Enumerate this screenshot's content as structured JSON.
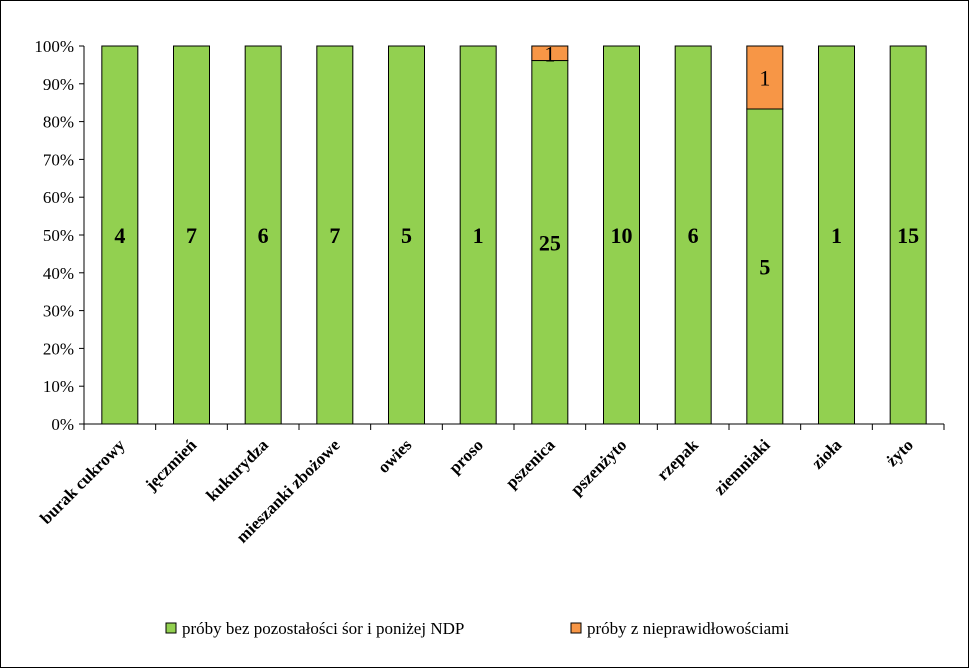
{
  "chart_data": {
    "type": "bar",
    "stacked": true,
    "normalized": true,
    "categories": [
      "burak cukrowy",
      "jęczmień",
      "kukurydza",
      "mieszanki zbożowe",
      "owies",
      "proso",
      "pszenica",
      "pszenżyto",
      "rzepak",
      "ziemniaki",
      "zioła",
      "żyto"
    ],
    "series": [
      {
        "name": "próby bez pozostałości śor i poniżej NDP",
        "values": [
          4,
          7,
          6,
          7,
          5,
          1,
          25,
          10,
          6,
          5,
          1,
          15
        ],
        "color": "#92d050"
      },
      {
        "name": "próby z nieprawidłowościami",
        "values": [
          0,
          0,
          0,
          0,
          0,
          0,
          1,
          0,
          0,
          1,
          0,
          0
        ],
        "color": "#f79646"
      }
    ],
    "y_ticks": [
      "0%",
      "10%",
      "20%",
      "30%",
      "40%",
      "50%",
      "60%",
      "70%",
      "80%",
      "90%",
      "100%"
    ],
    "ylim": [
      0,
      100
    ],
    "legend_position": "bottom",
    "grid": false
  }
}
